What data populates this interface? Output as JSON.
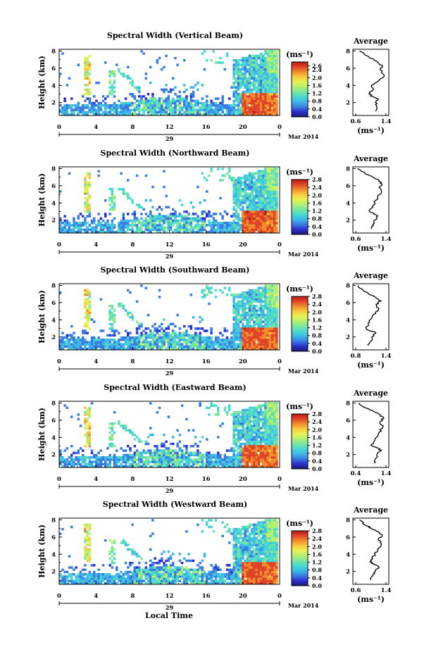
{
  "figure": {
    "common": {
      "xlabel": "Local Time",
      "date_day": "29",
      "date_month": "Mar 2014",
      "x_ticks": [
        "0",
        "4",
        "8",
        "12",
        "16",
        "20",
        "0"
      ],
      "x_tick_values": [
        0,
        4,
        8,
        12,
        16,
        20,
        24
      ],
      "xlim": [
        0,
        24
      ],
      "ylabel": "Height (km)",
      "y_ticks": [
        "2",
        "4",
        "6",
        "8"
      ],
      "y_tick_values": [
        2,
        4,
        6,
        8
      ],
      "ylim": [
        0.5,
        8.2
      ],
      "colorbar_unit": "(ms⁻¹)",
      "colorbar_range": [
        0.0,
        2.8
      ],
      "colormap": [
        "#1a1a6e",
        "#2d2dd0",
        "#3a7be0",
        "#3fb6e8",
        "#48d8d0",
        "#78e6a0",
        "#b4f070",
        "#e8f050",
        "#f8c840",
        "#f08c2c",
        "#e04428",
        "#b81818"
      ],
      "average_title": "Average",
      "average_xlabel": "(ms⁻¹)",
      "average_y_ticks": [
        "2",
        "4",
        "6",
        "8"
      ]
    },
    "panels": [
      {
        "title": "Spectral Width (Vertical Beam)",
        "colorbar_ticks": [
          "2.6",
          "2.4",
          "2.0",
          "1.6",
          "1.2",
          "0.8",
          "0.4",
          "0.0"
        ],
        "colorbar_tick_values": [
          2.6,
          2.4,
          2.0,
          1.6,
          1.2,
          0.8,
          0.4,
          0.0
        ],
        "average_x_ticks": [
          "0.6",
          "1.4"
        ],
        "average_x_tick_values": [
          0.6,
          1.4
        ]
      },
      {
        "title": "Spectral Width (Northward Beam)",
        "colorbar_ticks": [
          "2.8",
          "2.4",
          "2.0",
          "1.6",
          "1.2",
          "0.8",
          "0.4",
          "0.0"
        ],
        "colorbar_tick_values": [
          2.8,
          2.4,
          2.0,
          1.6,
          1.2,
          0.8,
          0.4,
          0.0
        ],
        "average_x_ticks": [
          "0.6",
          "1.4"
        ],
        "average_x_tick_values": [
          0.6,
          1.4
        ]
      },
      {
        "title": "Spectral Width (Southward Beam)",
        "colorbar_ticks": [
          "2.8",
          "2.4",
          "2.0",
          "1.6",
          "1.2",
          "0.8",
          "0.4",
          "0.0"
        ],
        "colorbar_tick_values": [
          2.8,
          2.4,
          2.0,
          1.6,
          1.2,
          0.8,
          0.4,
          0.0
        ],
        "average_x_ticks": [
          "0.8",
          "1.4"
        ],
        "average_x_tick_values": [
          0.8,
          1.4
        ]
      },
      {
        "title": "Spectral Width (Eastward Beam)",
        "colorbar_ticks": [
          "2.8",
          "2.4",
          "2.0",
          "1.6",
          "1.2",
          "0.8",
          "0.4",
          "0.0"
        ],
        "colorbar_tick_values": [
          2.8,
          2.4,
          2.0,
          1.6,
          1.2,
          0.8,
          0.4,
          0.0
        ],
        "average_x_ticks": [
          "0.4",
          "1.4"
        ],
        "average_x_tick_values": [
          0.4,
          1.4
        ]
      },
      {
        "title": "Spectral Width (Westward Beam)",
        "colorbar_ticks": [
          "2.8",
          "2.4",
          "2.0",
          "1.6",
          "1.2",
          "0.8",
          "0.4",
          "0.0"
        ],
        "colorbar_tick_values": [
          2.8,
          2.4,
          2.0,
          1.6,
          1.2,
          0.8,
          0.4,
          0.0
        ],
        "average_x_ticks": [
          "0.6",
          "1.4"
        ],
        "average_x_tick_values": [
          0.6,
          1.4
        ]
      }
    ]
  },
  "chart_data": [
    {
      "type": "heatmap",
      "title": "Spectral Width (Vertical Beam)",
      "xlabel": "Local Time",
      "ylabel": "Height (km)",
      "xlim": [
        0,
        24
      ],
      "ylim": [
        0.5,
        8.2
      ],
      "colorbar_range": [
        0.0,
        2.8
      ]
    },
    {
      "type": "line",
      "title": "Average",
      "xlim": [
        0.6,
        1.4
      ],
      "ylim": [
        0.5,
        8.2
      ],
      "x": [
        1.12,
        1.15,
        1.12,
        1.2,
        1.05,
        0.95,
        1.05,
        1.02,
        1.22,
        1.35,
        1.25,
        1.3,
        1.2,
        1.08,
        0.92,
        0.7
      ],
      "y": [
        1.0,
        1.5,
        2.0,
        2.4,
        2.7,
        3.0,
        3.4,
        4.0,
        4.6,
        5.2,
        5.8,
        6.2,
        6.6,
        7.0,
        7.4,
        8.0
      ]
    },
    {
      "type": "heatmap",
      "title": "Spectral Width (Northward Beam)",
      "xlabel": "Local Time",
      "ylabel": "Height (km)",
      "xlim": [
        0,
        24
      ],
      "ylim": [
        0.5,
        8.2
      ],
      "colorbar_range": [
        0.0,
        2.8
      ]
    },
    {
      "type": "line",
      "title": "Average",
      "xlim": [
        0.6,
        1.4
      ],
      "ylim": [
        0.5,
        8.2
      ],
      "x": [
        1.0,
        1.05,
        1.1,
        1.18,
        1.08,
        0.95,
        1.05,
        1.1,
        1.18,
        1.28,
        1.22,
        1.3,
        1.22,
        1.05,
        0.85,
        0.65
      ],
      "y": [
        1.0,
        1.5,
        2.0,
        2.5,
        2.8,
        3.1,
        3.5,
        4.0,
        4.6,
        5.2,
        5.8,
        6.2,
        6.6,
        7.0,
        7.4,
        8.0
      ]
    },
    {
      "type": "heatmap",
      "title": "Spectral Width (Southward Beam)",
      "xlabel": "Local Time",
      "ylabel": "Height (km)",
      "xlim": [
        0,
        24
      ],
      "ylim": [
        0.5,
        8.2
      ],
      "colorbar_range": [
        0.0,
        2.8
      ]
    },
    {
      "type": "line",
      "title": "Average",
      "xlim": [
        0.8,
        1.4
      ],
      "ylim": [
        0.5,
        8.2
      ],
      "x": [
        1.05,
        1.1,
        1.12,
        1.2,
        1.05,
        1.0,
        1.05,
        1.08,
        1.15,
        1.25,
        1.2,
        1.3,
        1.2,
        1.05,
        0.95,
        0.85
      ],
      "y": [
        1.0,
        1.5,
        2.0,
        2.5,
        2.8,
        3.1,
        3.5,
        4.0,
        4.6,
        5.2,
        5.8,
        6.2,
        6.6,
        7.0,
        7.4,
        8.0
      ]
    },
    {
      "type": "heatmap",
      "title": "Spectral Width (Eastward Beam)",
      "xlabel": "Local Time",
      "ylabel": "Height (km)",
      "xlim": [
        0,
        24
      ],
      "ylim": [
        0.5,
        8.2
      ],
      "colorbar_range": [
        0.0,
        2.8
      ]
    },
    {
      "type": "line",
      "title": "Average",
      "xlim": [
        0.4,
        1.4
      ],
      "ylim": [
        0.5,
        8.2
      ],
      "x": [
        1.0,
        1.05,
        1.1,
        1.25,
        1.1,
        0.9,
        1.0,
        1.08,
        1.18,
        1.3,
        1.2,
        1.32,
        1.22,
        1.0,
        0.75,
        0.5
      ],
      "y": [
        1.0,
        1.5,
        2.0,
        2.5,
        2.8,
        3.1,
        3.5,
        4.0,
        4.6,
        5.2,
        5.8,
        6.2,
        6.6,
        7.0,
        7.4,
        8.0
      ]
    },
    {
      "type": "heatmap",
      "title": "Spectral Width (Westward Beam)",
      "xlabel": "Local Time",
      "ylabel": "Height (km)",
      "xlim": [
        0,
        24
      ],
      "ylim": [
        0.5,
        8.2
      ],
      "colorbar_range": [
        0.0,
        2.8
      ]
    },
    {
      "type": "line",
      "title": "Average",
      "xlim": [
        0.6,
        1.4
      ],
      "ylim": [
        0.5,
        8.2
      ],
      "x": [
        1.0,
        1.05,
        1.12,
        1.22,
        1.08,
        0.98,
        1.05,
        1.1,
        1.18,
        1.28,
        1.2,
        1.3,
        1.2,
        1.02,
        0.85,
        0.7
      ],
      "y": [
        1.0,
        1.5,
        2.0,
        2.5,
        2.8,
        3.1,
        3.5,
        4.0,
        4.6,
        5.2,
        5.8,
        6.2,
        6.6,
        7.0,
        7.4,
        8.0
      ]
    }
  ]
}
